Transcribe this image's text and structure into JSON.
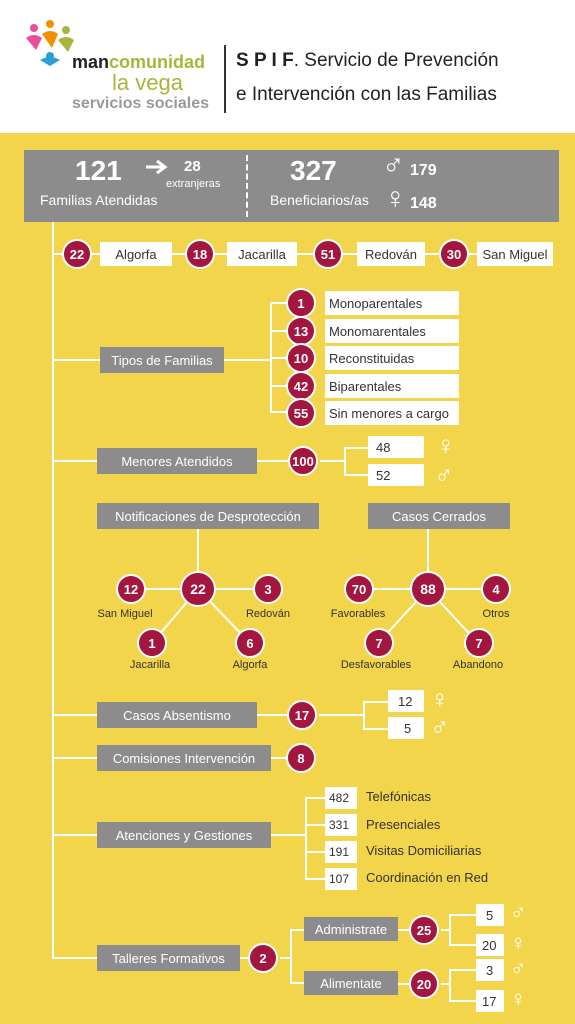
{
  "header": {
    "logo": {
      "brand": "mancomunidad",
      "brand_part1": "man",
      "brand_part2": "comunidad",
      "sub1": "la vega",
      "sub2": "servicios sociales"
    },
    "title_acronym": "S P I F",
    "title_line1": ". Servicio de Prevención",
    "title_line2": "e Intervención con las Familias"
  },
  "summary": {
    "families_count": "121",
    "families_label": "Familias Atendidas",
    "foreign_count": "28",
    "foreign_label": "extranjeras",
    "beneficiaries_count": "327",
    "beneficiaries_label": "Beneficiarios/as",
    "male_count": "179",
    "female_count": "148"
  },
  "towns": [
    {
      "count": "22",
      "name": "Algorfa"
    },
    {
      "count": "18",
      "name": "Jacarilla"
    },
    {
      "count": "51",
      "name": "Redován"
    },
    {
      "count": "30",
      "name": "San Miguel"
    }
  ],
  "family_types": {
    "label": "Tipos de Familias",
    "items": [
      {
        "count": "1",
        "name": "Monoparentales"
      },
      {
        "count": "13",
        "name": "Monomarentales"
      },
      {
        "count": "10",
        "name": "Reconstituidas"
      },
      {
        "count": "42",
        "name": "Biparentales"
      },
      {
        "count": "55",
        "name": "Sin menores a cargo"
      }
    ]
  },
  "minors": {
    "label": "Menores Atendidos",
    "count": "100",
    "female": "48",
    "male": "52"
  },
  "notifications": {
    "label": "Notificaciones de Desprotección",
    "total": "22",
    "items": [
      {
        "count": "12",
        "name": "San Miguel"
      },
      {
        "count": "3",
        "name": "Redován"
      },
      {
        "count": "1",
        "name": "Jacarilla"
      },
      {
        "count": "6",
        "name": "Algorfa"
      }
    ]
  },
  "closed_cases": {
    "label": "Casos Cerrados",
    "total": "88",
    "items": [
      {
        "count": "70",
        "name": "Favorables"
      },
      {
        "count": "4",
        "name": "Otros"
      },
      {
        "count": "7",
        "name": "Desfavorables"
      },
      {
        "count": "7",
        "name": "Abandono"
      }
    ]
  },
  "absenteeism": {
    "label": "Casos Absentismo",
    "count": "17",
    "female": "12",
    "male": "5"
  },
  "commissions": {
    "label": "Comisiones Intervención",
    "count": "8"
  },
  "attentions": {
    "label": "Atenciones y Gestiones",
    "items": [
      {
        "count": "482",
        "name": "Telefónicas"
      },
      {
        "count": "331",
        "name": "Presenciales"
      },
      {
        "count": "191",
        "name": "Visitas Domiciliarias"
      },
      {
        "count": "107",
        "name": "Coordinación en Red"
      }
    ]
  },
  "workshops": {
    "label": "Talleres Formativos",
    "count": "2",
    "items": [
      {
        "name": "Administrate",
        "count": "25",
        "male": "5",
        "female": "20"
      },
      {
        "name": "Alimentate",
        "count": "20",
        "male": "3",
        "female": "17"
      }
    ]
  },
  "colors": {
    "background": "#f2d54b",
    "accent": "#a3163f",
    "box_gray": "#8c8c8c",
    "logo_green": "#a8b53a"
  },
  "icons": {
    "male": "male-symbol-icon",
    "female": "female-symbol-icon",
    "arrow": "arrow-right-icon"
  }
}
